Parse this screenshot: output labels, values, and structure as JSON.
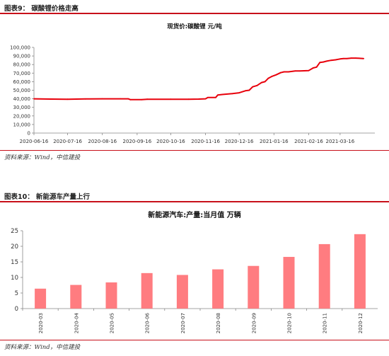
{
  "figure1": {
    "title": "图表9： 碳酸锂价格走高",
    "source": "资料来源：Wind，中信建投"
  },
  "figure2": {
    "title": "图表10： 新能源车产量上行",
    "source": "资料来源：Wind，中信建投"
  },
  "colors": {
    "rule": "#c8101a",
    "line": "#e8000b",
    "bar": "#ff7c80"
  },
  "chart_data": [
    {
      "type": "line",
      "title": "现货价:碳酸锂 元/吨",
      "xlabel": "",
      "ylabel": "",
      "ylim": [
        0,
        100000
      ],
      "yticks": [
        0,
        10000,
        20000,
        30000,
        40000,
        50000,
        60000,
        70000,
        80000,
        90000,
        100000
      ],
      "ytick_labels": [
        "0",
        "10,000",
        "20,000",
        "30,000",
        "40,000",
        "50,000",
        "60,000",
        "70,000",
        "80,000",
        "90,000",
        "100,000"
      ],
      "xlim": [
        "2020-06-16",
        "2021-04-16"
      ],
      "xticks": [
        "2020-06-16",
        "2020-07-16",
        "2020-08-16",
        "2020-09-16",
        "2020-10-16",
        "2020-11-16",
        "2020-12-16",
        "2021-01-16",
        "2021-02-16",
        "2021-03-16"
      ],
      "grid": false,
      "series": [
        {
          "x": [
            "2020-06-16",
            "2020-07-01",
            "2020-07-16",
            "2020-08-01",
            "2020-08-16",
            "2020-09-01",
            "2020-09-08",
            "2020-09-10",
            "2020-09-20",
            "2020-09-25",
            "2020-10-16",
            "2020-11-01",
            "2020-11-10",
            "2020-11-16",
            "2020-11-18",
            "2020-11-25",
            "2020-11-27",
            "2020-12-01",
            "2020-12-10",
            "2020-12-16",
            "2020-12-22",
            "2020-12-25",
            "2020-12-28",
            "2021-01-01",
            "2021-01-05",
            "2021-01-08",
            "2021-01-11",
            "2021-01-14",
            "2021-01-18",
            "2021-01-22",
            "2021-01-25",
            "2021-01-29",
            "2021-02-01",
            "2021-02-04",
            "2021-02-08",
            "2021-02-16",
            "2021-02-20",
            "2021-02-23",
            "2021-02-26",
            "2021-03-01",
            "2021-03-04",
            "2021-03-08",
            "2021-03-12",
            "2021-03-16",
            "2021-03-19",
            "2021-03-22",
            "2021-03-26",
            "2021-03-30",
            "2021-04-06"
          ],
          "values": [
            40000,
            39700,
            39500,
            39800,
            40000,
            40000,
            40000,
            39000,
            39000,
            39500,
            39500,
            39500,
            39700,
            40000,
            41500,
            41500,
            44500,
            45000,
            46000,
            47000,
            49500,
            50000,
            54000,
            55500,
            59000,
            60000,
            64000,
            66000,
            68000,
            70500,
            71500,
            71500,
            72000,
            72500,
            72500,
            73000,
            76000,
            77000,
            82500,
            83000,
            84000,
            85000,
            85500,
            86500,
            87000,
            87000,
            87500,
            87500,
            87000
          ]
        }
      ]
    },
    {
      "type": "bar",
      "title": "新能源汽车:产量:当月值 万辆",
      "xlabel": "",
      "ylabel": "",
      "ylim": [
        0,
        25
      ],
      "yticks": [
        0,
        5,
        10,
        15,
        20,
        25
      ],
      "grid": false,
      "categories": [
        "2020-03",
        "2020-04",
        "2020-05",
        "2020-06",
        "2020-07",
        "2020-08",
        "2020-09",
        "2020-10",
        "2020-11",
        "2020-12"
      ],
      "values": [
        6.4,
        7.6,
        8.4,
        11.4,
        10.8,
        12.6,
        13.7,
        16.6,
        20.7,
        23.9
      ]
    }
  ]
}
